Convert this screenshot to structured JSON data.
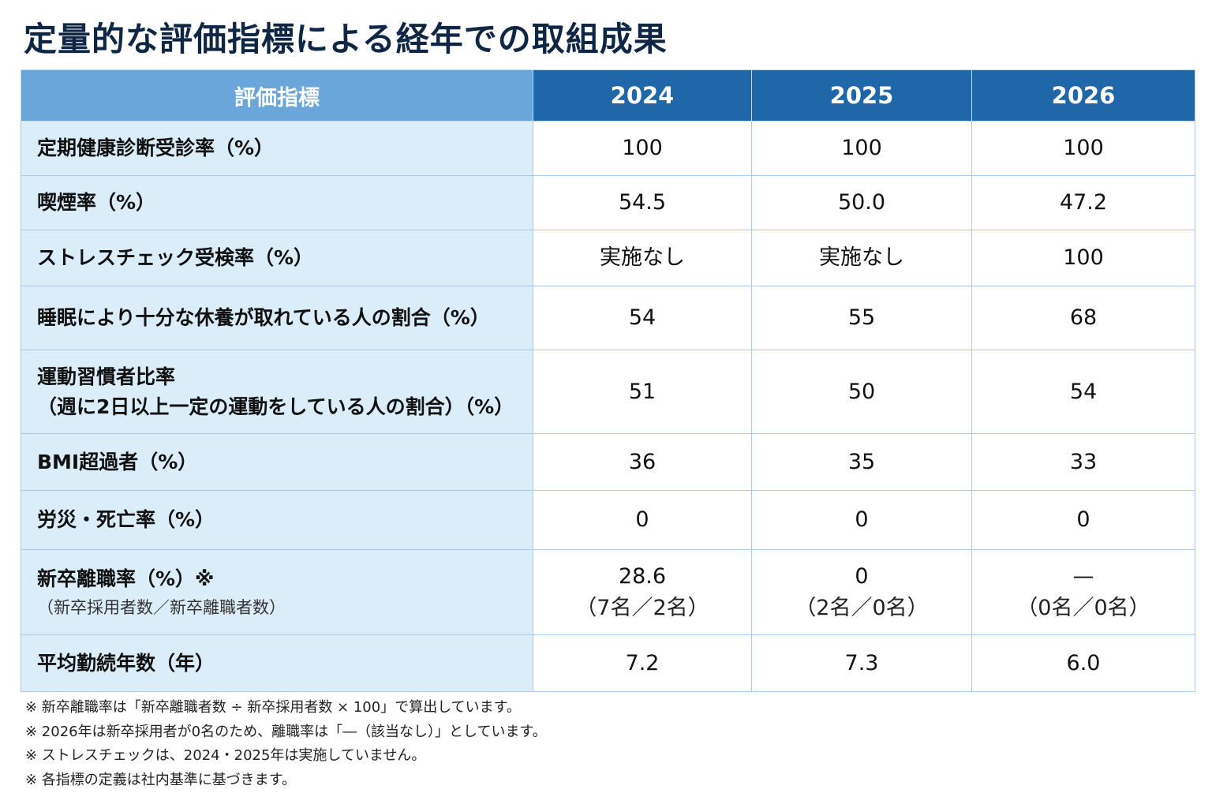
{
  "title": "定量的な評価指標による経年での取組成果",
  "table": {
    "header": {
      "label": "評価指標",
      "years": [
        "2024",
        "2025",
        "2026"
      ]
    },
    "rows": [
      {
        "label": "定期健康診断受診率（%）",
        "values": [
          "100",
          "100",
          "100"
        ]
      },
      {
        "label": "喫煙率（%）",
        "values": [
          "54.5",
          "50.0",
          "47.2"
        ]
      },
      {
        "label": "ストレスチェック受検率（%）",
        "values": [
          "実施なし",
          "実施なし",
          "100"
        ]
      },
      {
        "label": "睡眠により十分な休養が取れている人の割合（%）",
        "values": [
          "54",
          "55",
          "68"
        ]
      },
      {
        "label": "運動習慣者比率",
        "label2": "（週に2日以上一定の運動をしている人の割合）（%）",
        "values": [
          "51",
          "50",
          "54"
        ]
      },
      {
        "label": "BMI超過者（%）",
        "values": [
          "36",
          "35",
          "33"
        ]
      },
      {
        "label": "労災・死亡率（%）",
        "values": [
          "0",
          "0",
          "0"
        ]
      },
      {
        "label": "新卒離職率（%）※",
        "note": "（新卒採用者数／新卒離職者数）",
        "values": [
          "28.6",
          "0",
          "—"
        ],
        "subvalues": [
          "（7名／2名）",
          "（2名／0名）",
          "（0名／0名）"
        ]
      },
      {
        "label": "平均勤続年数（年）",
        "values": [
          "7.2",
          "7.3",
          "6.0"
        ]
      }
    ]
  },
  "footnotes": [
    "※ 新卒離職率は「新卒離職者数 ÷ 新卒採用者数 × 100」で算出しています。",
    "※ 2026年は新卒採用者が0名のため、離職率は「―（該当なし）」としています。",
    "※ ストレスチェックは、2024・2025年は実施していません。",
    "※ 各指標の定義は社内基準に基づきます。"
  ]
}
